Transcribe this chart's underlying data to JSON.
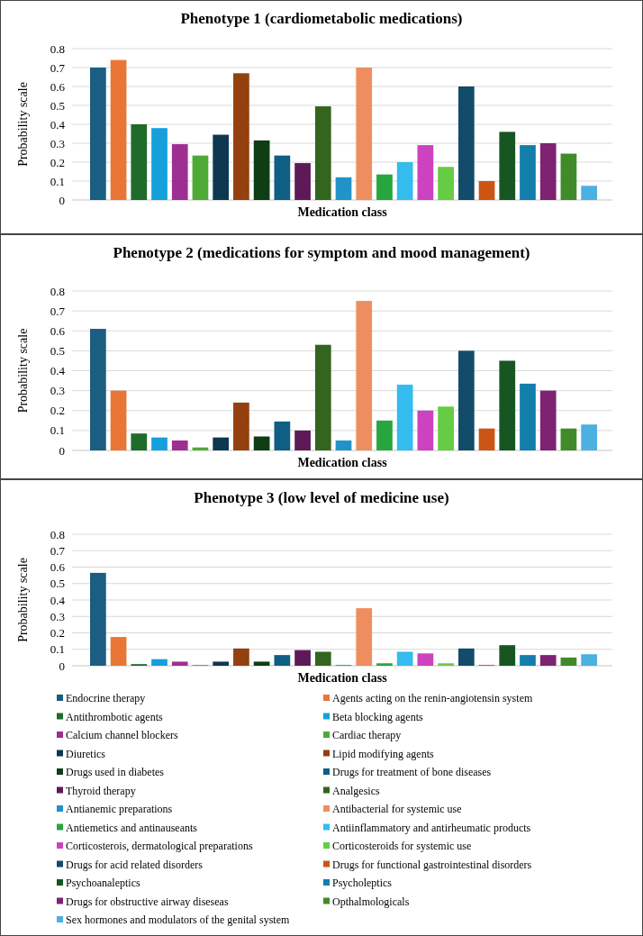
{
  "chart_data": [
    {
      "type": "bar",
      "title": "Phenotype 1 (cardiometabolic medications)",
      "xlabel": "Medication class",
      "ylabel": "Probability scale",
      "categories": [
        null
      ],
      "ylim": [
        0,
        0.8
      ],
      "yticks": [
        0,
        0.1,
        0.2,
        0.3,
        0.4,
        0.5,
        0.6,
        0.7,
        0.8
      ],
      "grid": "y",
      "legend": false,
      "series": [
        {
          "color": "#1b5e82",
          "values": [
            0.7
          ]
        },
        {
          "color": "#e97636",
          "values": [
            0.74
          ]
        },
        {
          "color": "#1e6b2a",
          "values": [
            0.4
          ]
        },
        {
          "color": "#15a0dc",
          "values": [
            0.38
          ]
        },
        {
          "color": "#9e2f92",
          "values": [
            0.295
          ]
        },
        {
          "color": "#4faa35",
          "values": [
            0.235
          ]
        },
        {
          "color": "#0e3850",
          "values": [
            0.345
          ]
        },
        {
          "color": "#94400f",
          "values": [
            0.67
          ]
        },
        {
          "color": "#0f3d14",
          "values": [
            0.315
          ]
        },
        {
          "color": "#0f5e84",
          "values": [
            0.235
          ]
        },
        {
          "color": "#5e1a58",
          "values": [
            0.195
          ]
        },
        {
          "color": "#33651e",
          "values": [
            0.495
          ]
        },
        {
          "color": "#2293c9",
          "values": [
            0.12
          ]
        },
        {
          "color": "#ee8e5f",
          "values": [
            0.7
          ]
        },
        {
          "color": "#27a63f",
          "values": [
            0.135
          ]
        },
        {
          "color": "#33bced",
          "values": [
            0.2
          ]
        },
        {
          "color": "#cc42bf",
          "values": [
            0.29
          ]
        },
        {
          "color": "#66cc44",
          "values": [
            0.175
          ]
        },
        {
          "color": "#134b6b",
          "values": [
            0.6
          ]
        },
        {
          "color": "#cc5516",
          "values": [
            0.1
          ]
        },
        {
          "color": "#175522",
          "values": [
            0.36
          ]
        },
        {
          "color": "#137eab",
          "values": [
            0.29
          ]
        },
        {
          "color": "#7e2272",
          "values": [
            0.3
          ]
        },
        {
          "color": "#3f8b2a",
          "values": [
            0.245
          ]
        },
        {
          "color": "#4cb0e0",
          "values": [
            0.075
          ]
        }
      ]
    },
    {
      "type": "bar",
      "title": "Phenotype 2 (medications for symptom and mood management)",
      "xlabel": "Medication class",
      "ylabel": "Probability scale",
      "categories": [
        null
      ],
      "ylim": [
        0,
        0.8
      ],
      "yticks": [
        0,
        0.1,
        0.2,
        0.3,
        0.4,
        0.5,
        0.6,
        0.7,
        0.8
      ],
      "grid": "y",
      "legend": false,
      "series": [
        {
          "color": "#1b5e82",
          "values": [
            0.61
          ]
        },
        {
          "color": "#e97636",
          "values": [
            0.3
          ]
        },
        {
          "color": "#1e6b2a",
          "values": [
            0.085
          ]
        },
        {
          "color": "#15a0dc",
          "values": [
            0.065
          ]
        },
        {
          "color": "#9e2f92",
          "values": [
            0.05
          ]
        },
        {
          "color": "#4faa35",
          "values": [
            0.015
          ]
        },
        {
          "color": "#0e3850",
          "values": [
            0.065
          ]
        },
        {
          "color": "#94400f",
          "values": [
            0.24
          ]
        },
        {
          "color": "#0f3d14",
          "values": [
            0.07
          ]
        },
        {
          "color": "#0f5e84",
          "values": [
            0.145
          ]
        },
        {
          "color": "#5e1a58",
          "values": [
            0.1
          ]
        },
        {
          "color": "#33651e",
          "values": [
            0.53
          ]
        },
        {
          "color": "#2293c9",
          "values": [
            0.05
          ]
        },
        {
          "color": "#ee8e5f",
          "values": [
            0.75
          ]
        },
        {
          "color": "#27a63f",
          "values": [
            0.15
          ]
        },
        {
          "color": "#33bced",
          "values": [
            0.33
          ]
        },
        {
          "color": "#cc42bf",
          "values": [
            0.2
          ]
        },
        {
          "color": "#66cc44",
          "values": [
            0.22
          ]
        },
        {
          "color": "#134b6b",
          "values": [
            0.5
          ]
        },
        {
          "color": "#cc5516",
          "values": [
            0.11
          ]
        },
        {
          "color": "#175522",
          "values": [
            0.45
          ]
        },
        {
          "color": "#137eab",
          "values": [
            0.335
          ]
        },
        {
          "color": "#7e2272",
          "values": [
            0.3
          ]
        },
        {
          "color": "#3f8b2a",
          "values": [
            0.11
          ]
        },
        {
          "color": "#4cb0e0",
          "values": [
            0.13
          ]
        }
      ]
    },
    {
      "type": "bar",
      "title": "Phenotype 3 (low level of medicine use)",
      "xlabel": "Medication class",
      "ylabel": "Probability scale",
      "categories": [
        null
      ],
      "ylim": [
        0,
        0.8
      ],
      "yticks": [
        0,
        0.1,
        0.2,
        0.3,
        0.4,
        0.5,
        0.6,
        0.7,
        0.8
      ],
      "grid": "y",
      "legend": "bottom",
      "series": [
        {
          "name": "Endocrine therapy",
          "color": "#1b5e82",
          "values": [
            0.565
          ]
        },
        {
          "name": "Agents acting on the renin-angiotensin system",
          "color": "#e97636",
          "values": [
            0.175
          ]
        },
        {
          "name": "Antithrombotic agents",
          "color": "#1e6b2a",
          "values": [
            0.01
          ]
        },
        {
          "name": "Beta blocking agents",
          "color": "#15a0dc",
          "values": [
            0.04
          ]
        },
        {
          "name": "Calcium channel blockers",
          "color": "#9e2f92",
          "values": [
            0.025
          ]
        },
        {
          "name": "Cardiac therapy",
          "color": "#4faa35",
          "values": [
            0.005
          ]
        },
        {
          "name": "Diuretics",
          "color": "#0e3850",
          "values": [
            0.025
          ]
        },
        {
          "name": "Lipid modifying agents",
          "color": "#94400f",
          "values": [
            0.105
          ]
        },
        {
          "name": "Drugs used in diabetes",
          "color": "#0f3d14",
          "values": [
            0.025
          ]
        },
        {
          "name": "Drugs for treatment of bone diseases",
          "color": "#0f5e84",
          "values": [
            0.065
          ]
        },
        {
          "name": "Thyroid therapy",
          "color": "#5e1a58",
          "values": [
            0.095
          ]
        },
        {
          "name": "Analgesics",
          "color": "#33651e",
          "values": [
            0.085
          ]
        },
        {
          "name": "Antianemic preparations",
          "color": "#2293c9",
          "values": [
            0.005
          ]
        },
        {
          "name": "Antibacterial for systemic use",
          "color": "#ee8e5f",
          "values": [
            0.35
          ]
        },
        {
          "name": "Antiemetics and antinauseants",
          "color": "#27a63f",
          "values": [
            0.015
          ]
        },
        {
          "name": "Antiinflammatory and antirheumatic products",
          "color": "#33bced",
          "values": [
            0.085
          ]
        },
        {
          "name": "Corticosterois, dermatological preparations",
          "color": "#cc42bf",
          "values": [
            0.075
          ]
        },
        {
          "name": "Corticosteroids for systemic use",
          "color": "#66cc44",
          "values": [
            0.015
          ]
        },
        {
          "name": "Drugs for acid related disorders",
          "color": "#134b6b",
          "values": [
            0.105
          ]
        },
        {
          "name": "Drugs for functional gastrointestinal disorders",
          "color": "#cc5516",
          "values": [
            0.005
          ]
        },
        {
          "name": "Psychoanaleptics",
          "color": "#175522",
          "values": [
            0.125
          ]
        },
        {
          "name": "Psycholeptics",
          "color": "#137eab",
          "values": [
            0.065
          ]
        },
        {
          "name": "Drugs for obstructive airway diseseas",
          "color": "#7e2272",
          "values": [
            0.065
          ]
        },
        {
          "name": "Opthalmologicals",
          "color": "#3f8b2a",
          "values": [
            0.05
          ]
        },
        {
          "name": "Sex hormones and modulators of the genital system",
          "color": "#4cb0e0",
          "values": [
            0.07
          ]
        }
      ]
    }
  ]
}
